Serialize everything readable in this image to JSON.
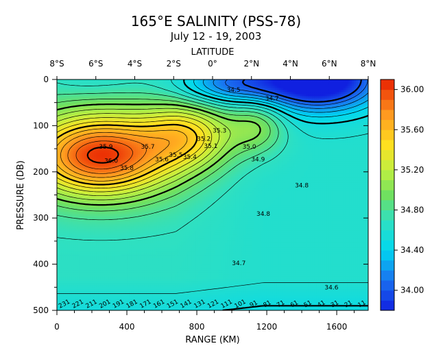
{
  "chart_data": {
    "type": "heatmap",
    "title": "165°E SALINITY (PSS-78)",
    "subtitle": "July 12 - 19, 2003",
    "top_axis_label": "LATITUDE",
    "top_ticks": [
      "8°S",
      "6°S",
      "4°S",
      "2°S",
      "0°",
      "2°N",
      "4°N",
      "6°N",
      "8°N"
    ],
    "xlabel": "RANGE (KM)",
    "x_ticks": [
      0,
      400,
      800,
      1200,
      1600
    ],
    "xlim": [
      0,
      1780
    ],
    "ylabel": "PRESSURE (DB)",
    "y_ticks": [
      0,
      100,
      200,
      300,
      400,
      500
    ],
    "ylim": [
      0,
      500
    ],
    "y_reversed": true,
    "colorbar": {
      "min": 33.8,
      "max": 36.1,
      "ticks": [
        "34.00",
        "34.40",
        "34.80",
        "35.20",
        "35.60",
        "36.00"
      ],
      "tick_values": [
        34.0,
        34.4,
        34.8,
        35.2,
        35.6,
        36.0
      ],
      "stops": [
        {
          "v": 33.8,
          "color": "#1020e0"
        },
        {
          "v": 34.1,
          "color": "#1a70f0"
        },
        {
          "v": 34.4,
          "color": "#00d8f0"
        },
        {
          "v": 34.7,
          "color": "#30e0c0"
        },
        {
          "v": 34.95,
          "color": "#70e060"
        },
        {
          "v": 35.2,
          "color": "#c0f040"
        },
        {
          "v": 35.45,
          "color": "#ffe020"
        },
        {
          "v": 35.75,
          "color": "#ff9a20"
        },
        {
          "v": 36.1,
          "color": "#e82000"
        }
      ]
    },
    "contour_labels": [
      {
        "text": "34.5",
        "x": 1010,
        "y": 27
      },
      {
        "text": "34.7",
        "x": 1230,
        "y": 45
      },
      {
        "text": "35.3",
        "x": 930,
        "y": 115
      },
      {
        "text": "35.2",
        "x": 840,
        "y": 133
      },
      {
        "text": "35.1",
        "x": 880,
        "y": 148
      },
      {
        "text": "35.0",
        "x": 1100,
        "y": 150
      },
      {
        "text": "34.9",
        "x": 1150,
        "y": 177
      },
      {
        "text": "35.9",
        "x": 280,
        "y": 150
      },
      {
        "text": "36.0",
        "x": 310,
        "y": 180
      },
      {
        "text": "35.8",
        "x": 400,
        "y": 196
      },
      {
        "text": "35.7",
        "x": 520,
        "y": 150
      },
      {
        "text": "35.6",
        "x": 600,
        "y": 177
      },
      {
        "text": "35.5",
        "x": 680,
        "y": 168
      },
      {
        "text": "35.4",
        "x": 760,
        "y": 172
      },
      {
        "text": "34.8",
        "x": 1400,
        "y": 234
      },
      {
        "text": "34.8",
        "x": 1180,
        "y": 295
      },
      {
        "text": "34.7",
        "x": 1040,
        "y": 402
      },
      {
        "text": "34.6",
        "x": 1570,
        "y": 455
      }
    ],
    "bottom_contour_labels": [
      "231",
      "221",
      "211",
      "201",
      "191",
      "181",
      "171",
      "161",
      "151",
      "141",
      "131",
      "121",
      "111",
      "101",
      "91",
      "81",
      "71",
      "61",
      "51",
      "41",
      "31",
      "21",
      "11"
    ]
  }
}
